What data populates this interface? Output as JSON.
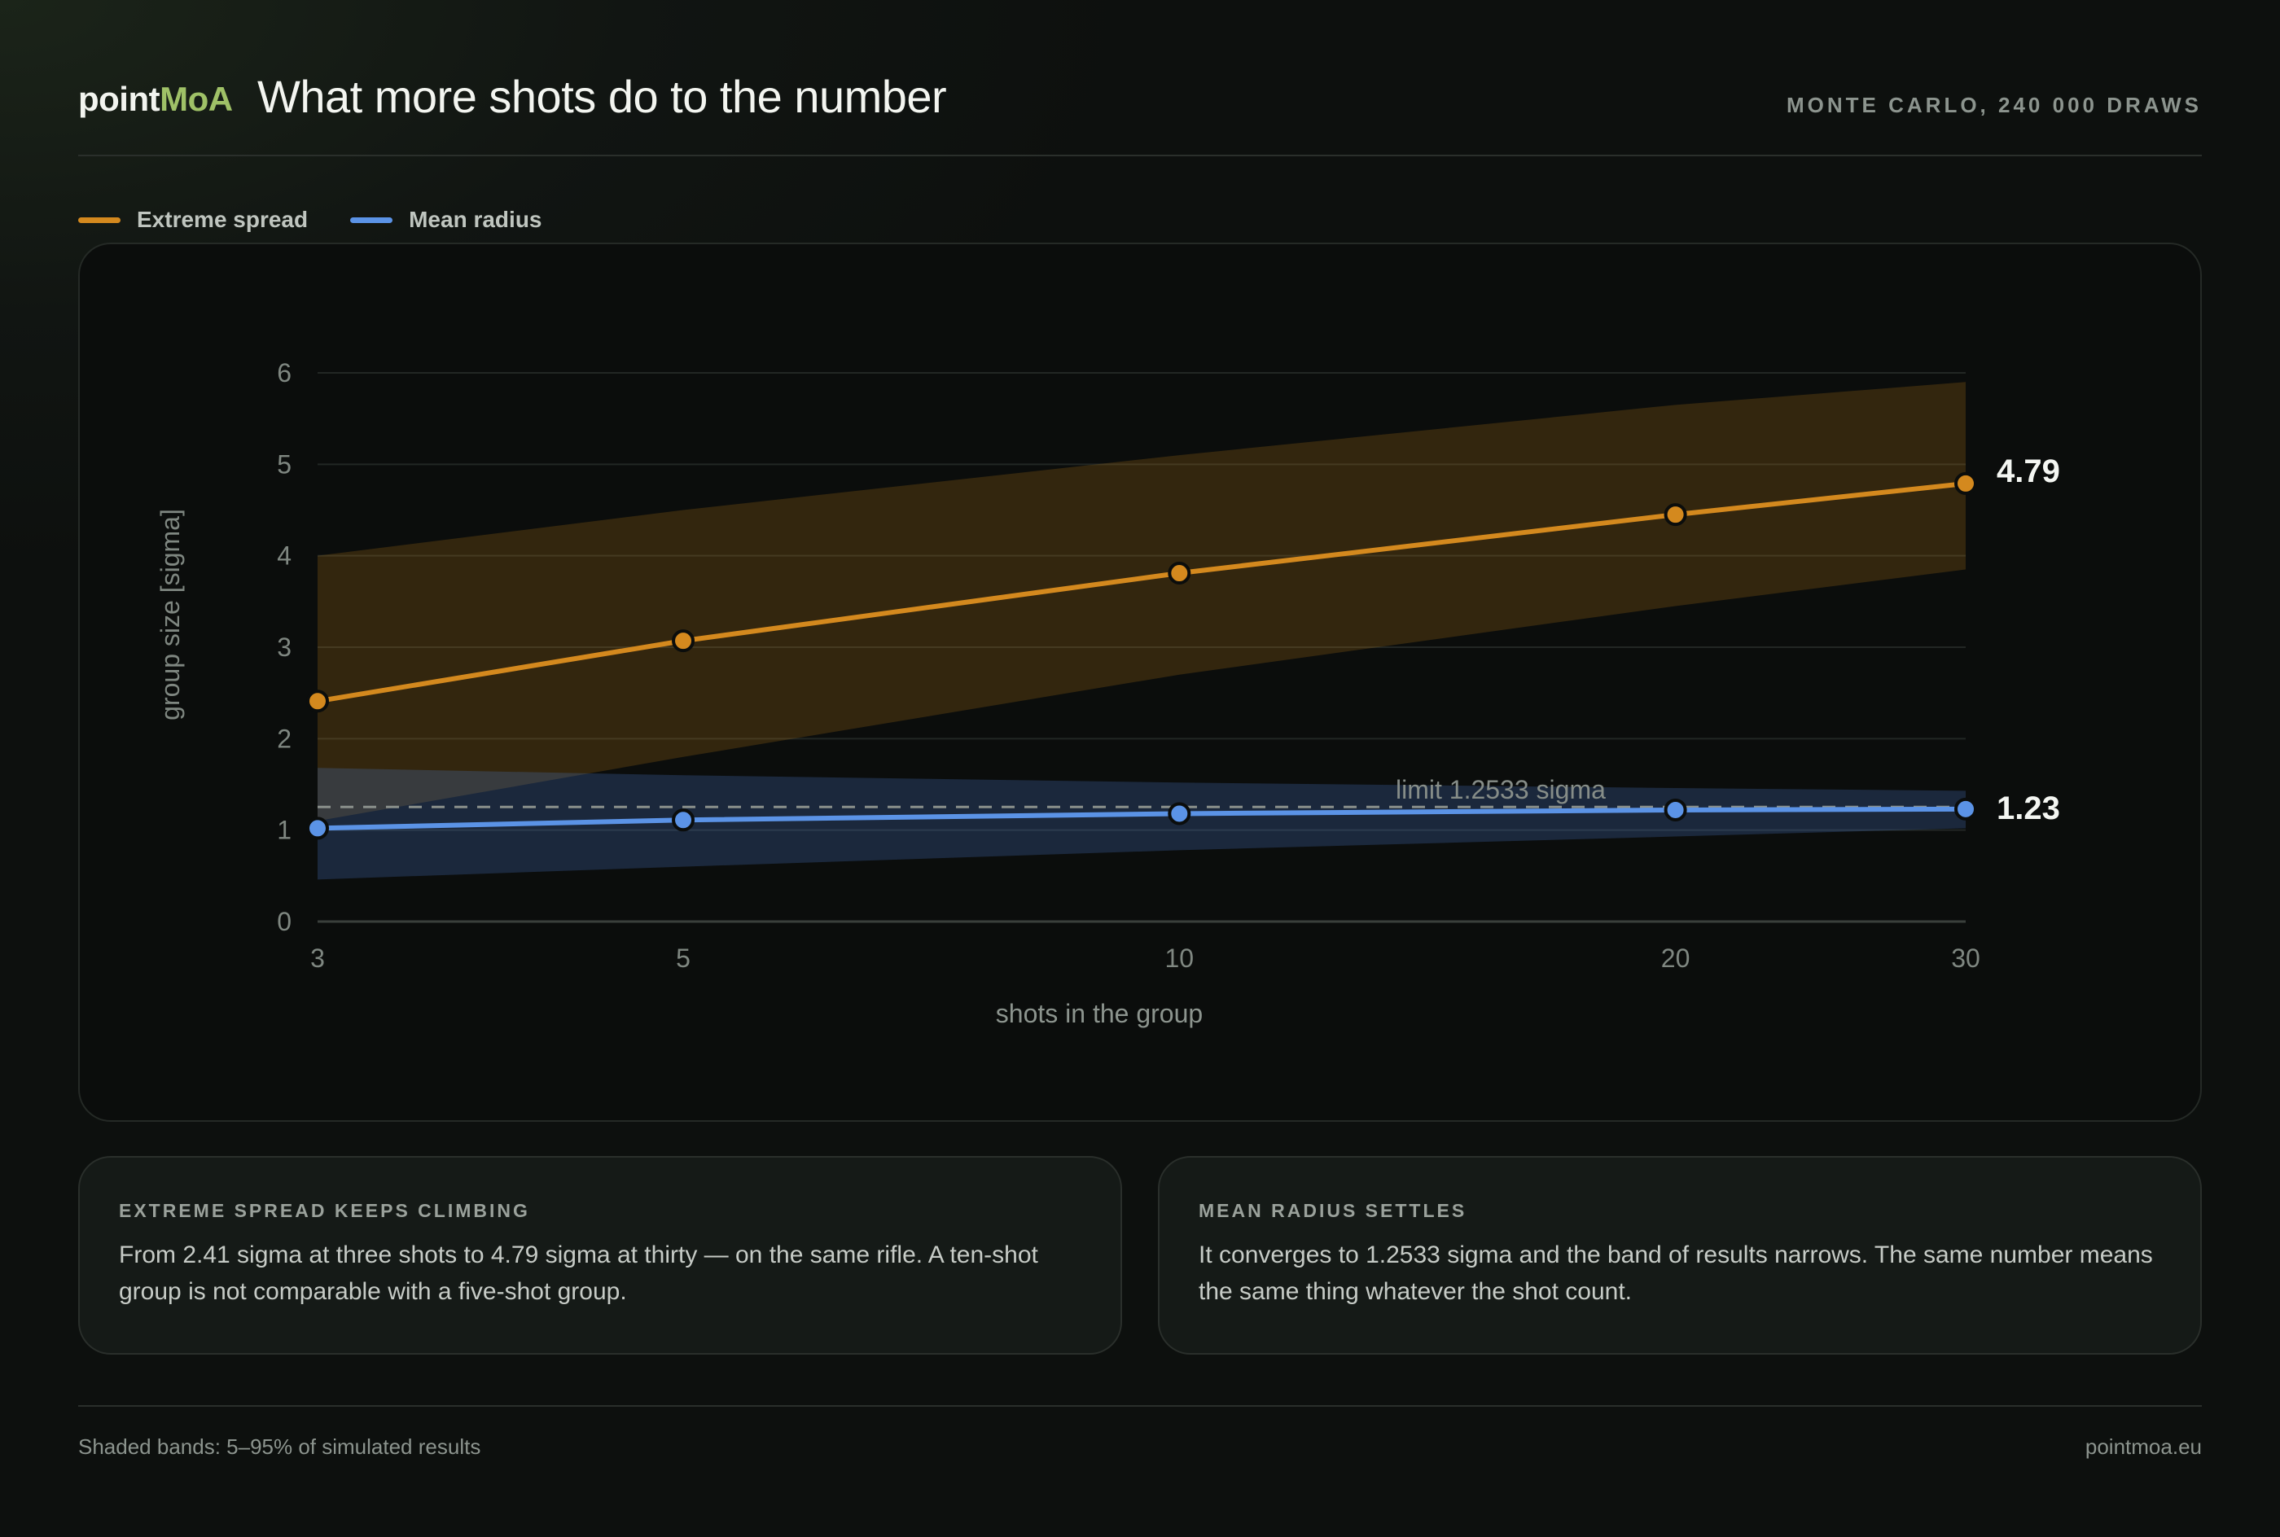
{
  "header": {
    "brand_part1": "point",
    "brand_part2": "MoA",
    "title": "What more shots do to the number",
    "kicker": "MONTE CARLO, 240 000 DRAWS"
  },
  "legend": [
    {
      "label": "Extreme spread",
      "color": "#d4891e"
    },
    {
      "label": "Mean radius",
      "color": "#5b93e6"
    }
  ],
  "chart_data": {
    "type": "line",
    "title": "",
    "xlabel": "shots in the group",
    "ylabel": "group size [sigma]",
    "x_scale": "log",
    "x": [
      3,
      5,
      10,
      20,
      30
    ],
    "x_ticks": [
      "3",
      "5",
      "10",
      "20",
      "30"
    ],
    "y_ticks": [
      "0",
      "1",
      "2",
      "3",
      "4",
      "5",
      "6"
    ],
    "ylim": [
      0,
      6
    ],
    "grid": true,
    "legend_position": "top-left",
    "series": [
      {
        "name": "Extreme spread",
        "color": "#d4891e",
        "values": [
          2.41,
          3.07,
          3.81,
          4.45,
          4.79
        ],
        "band_low": [
          1.1,
          1.8,
          2.7,
          3.45,
          3.85
        ],
        "band_high": [
          4.0,
          4.5,
          5.1,
          5.65,
          5.9
        ],
        "end_label": "4.79"
      },
      {
        "name": "Mean radius",
        "color": "#5b93e6",
        "values": [
          1.02,
          1.11,
          1.18,
          1.22,
          1.23
        ],
        "band_low": [
          0.46,
          0.6,
          0.78,
          0.93,
          1.02
        ],
        "band_high": [
          1.68,
          1.6,
          1.52,
          1.46,
          1.43
        ],
        "end_label": "1.23"
      }
    ],
    "reference_line": {
      "value": 1.2533,
      "label": "limit 1.2533 sigma"
    }
  },
  "cards": [
    {
      "heading": "EXTREME SPREAD KEEPS CLIMBING",
      "text": "From 2.41 sigma at three shots to 4.79 sigma at thirty — on the same rifle. A ten-shot group is not comparable with a five-shot group."
    },
    {
      "heading": "MEAN RADIUS SETTLES",
      "text": "It converges to 1.2533 sigma and the band of results narrows. The same number means the same thing whatever the shot count."
    }
  ],
  "footer": {
    "note": "Shaded bands: 5–95% of simulated results",
    "site": "pointmoa.eu"
  }
}
